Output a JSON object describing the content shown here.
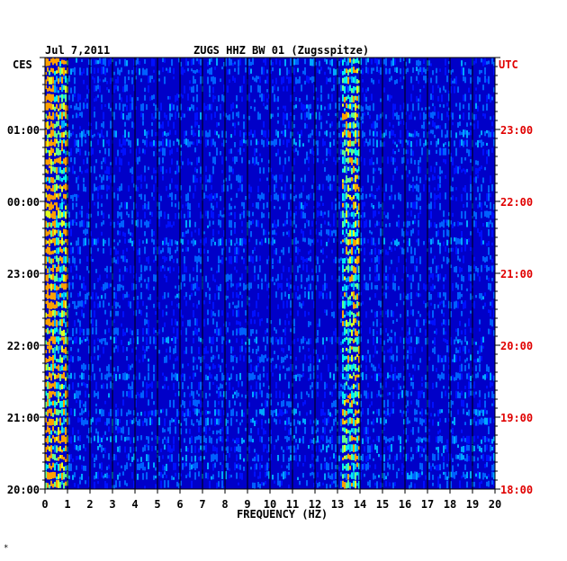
{
  "header": {
    "date": "Jul 7,2011",
    "station": "ZUGS HHZ BW 01 (Zugsspitze)",
    "left_zone": "CES",
    "right_zone": "UTC"
  },
  "colors": {
    "background": "#0000c8",
    "grid": "#000000",
    "left_labels": "#000000",
    "right_labels": "#e00000"
  },
  "chart_data": {
    "type": "heatmap",
    "title": "ZUGS HHZ BW 01 (Zugsspitze)",
    "subtitle": "Jul 7,2011",
    "xlabel": "FREQUENCY (HZ)",
    "xlim": [
      0,
      20
    ],
    "x_ticks": [
      "0",
      "1",
      "2",
      "3",
      "4",
      "5",
      "6",
      "7",
      "8",
      "9",
      "10",
      "11",
      "12",
      "13",
      "14",
      "15",
      "16",
      "17",
      "18",
      "19",
      "20"
    ],
    "y_left_label": "CES",
    "y_right_label": "UTC",
    "y_left_ticks": [
      "01:00",
      "00:00",
      "23:00",
      "22:00",
      "21:00",
      "20:00"
    ],
    "y_right_ticks": [
      "23:00",
      "22:00",
      "21:00",
      "20:00",
      "19:00",
      "18:00"
    ],
    "time_rows": 48,
    "bands": [
      {
        "range_hz": [
          0,
          1
        ],
        "level": 0.8
      },
      {
        "range_hz": [
          13.2,
          14.0
        ],
        "level": 0.7
      }
    ],
    "grid": true
  },
  "footnote": "*"
}
